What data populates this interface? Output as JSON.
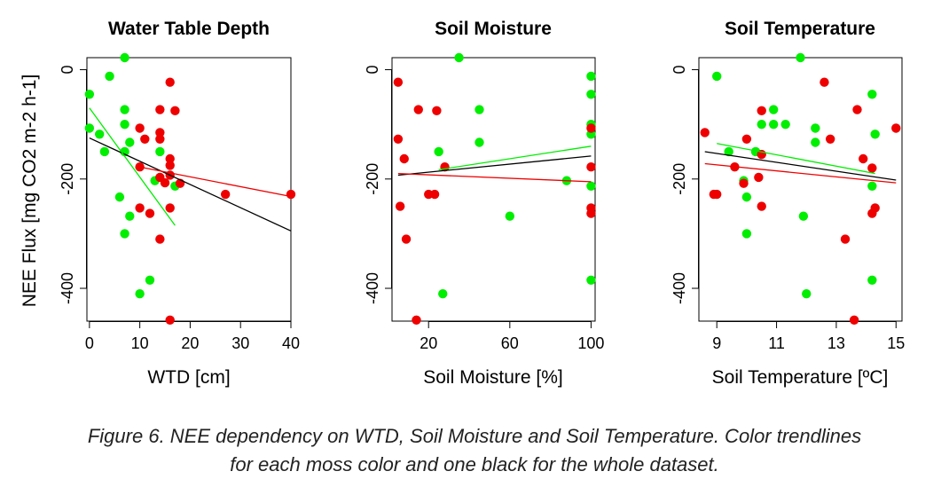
{
  "colors": {
    "green": "#00ee00",
    "red": "#ee0000",
    "black": "#000000"
  },
  "caption": {
    "line1": "Figure 6. NEE dependency on WTD, Soil Moisture and Soil Temperature. Color trendlines",
    "line2": "for each moss color and one black for the whole dataset."
  },
  "chart_data": [
    {
      "type": "scatter",
      "title": "Water Table Depth",
      "xlabel": "WTD [cm]",
      "ylabel": "NEE Flux [mg CO2 m-2 h-1]",
      "xticks": [
        "0",
        "10",
        "20",
        "30",
        "40"
      ],
      "yticks": [
        "0",
        "-200",
        "-400"
      ],
      "xlim": [
        -0.5,
        40
      ],
      "ylim": [
        -460,
        22
      ],
      "series": [
        {
          "color": "green",
          "points": [
            [
              0,
              -45
            ],
            [
              0,
              -107
            ],
            [
              2,
              -118
            ],
            [
              3,
              -150
            ],
            [
              4,
              -12
            ],
            [
              6,
              -233
            ],
            [
              7,
              22
            ],
            [
              7,
              -73
            ],
            [
              7,
              -100
            ],
            [
              7,
              -150
            ],
            [
              7,
              -300
            ],
            [
              8,
              -133
            ],
            [
              8,
              -268
            ],
            [
              10,
              -410
            ],
            [
              12,
              -385
            ],
            [
              13,
              -203
            ],
            [
              14,
              -150
            ],
            [
              17,
              -213
            ]
          ]
        },
        {
          "color": "red",
          "points": [
            [
              10,
              -107
            ],
            [
              10,
              -178
            ],
            [
              10,
              -253
            ],
            [
              11,
              -127
            ],
            [
              12,
              -263
            ],
            [
              14,
              -73
            ],
            [
              14,
              -115
            ],
            [
              14,
              -127
            ],
            [
              14,
              -197
            ],
            [
              14,
              -310
            ],
            [
              15,
              -207
            ],
            [
              16,
              -23
            ],
            [
              16,
              -163
            ],
            [
              16,
              -175
            ],
            [
              16,
              -193
            ],
            [
              16,
              -253
            ],
            [
              16,
              -458
            ],
            [
              17,
              -75
            ],
            [
              18,
              -208
            ],
            [
              27,
              -228
            ],
            [
              40,
              -228
            ]
          ]
        }
      ],
      "trendlines": [
        {
          "color": "black",
          "x": [
            0,
            40
          ],
          "y": [
            -125,
            -295
          ]
        },
        {
          "color": "green",
          "x": [
            0,
            17
          ],
          "y": [
            -70,
            -285
          ]
        },
        {
          "color": "red",
          "x": [
            10,
            40
          ],
          "y": [
            -178,
            -232
          ]
        }
      ]
    },
    {
      "type": "scatter",
      "title": "Soil Moisture",
      "xlabel": "Soil Moisture [%]",
      "xticks": [
        "20",
        "60",
        "100"
      ],
      "yticks": [
        "0",
        "-200",
        "-400"
      ],
      "xlim": [
        2,
        102
      ],
      "ylim": [
        -460,
        22
      ],
      "series": [
        {
          "color": "green",
          "points": [
            [
              25,
              -150
            ],
            [
              27,
              -410
            ],
            [
              35,
              22
            ],
            [
              45,
              -73
            ],
            [
              45,
              -133
            ],
            [
              60,
              -268
            ],
            [
              88,
              -203
            ],
            [
              100,
              -12
            ],
            [
              100,
              -45
            ],
            [
              100,
              -100
            ],
            [
              100,
              -118
            ],
            [
              100,
              -213
            ],
            [
              100,
              -385
            ]
          ]
        },
        {
          "color": "red",
          "points": [
            [
              5,
              -23
            ],
            [
              5,
              -127
            ],
            [
              6,
              -250
            ],
            [
              8,
              -163
            ],
            [
              9,
              -310
            ],
            [
              14,
              -458
            ],
            [
              15,
              -73
            ],
            [
              20,
              -228
            ],
            [
              23,
              -228
            ],
            [
              24,
              -75
            ],
            [
              28,
              -178
            ],
            [
              100,
              -107
            ],
            [
              100,
              -178
            ],
            [
              100,
              -253
            ],
            [
              100,
              -263
            ]
          ]
        }
      ],
      "trendlines": [
        {
          "color": "black",
          "x": [
            5,
            100
          ],
          "y": [
            -193,
            -158
          ]
        },
        {
          "color": "green",
          "x": [
            25,
            100
          ],
          "y": [
            -183,
            -140
          ]
        },
        {
          "color": "red",
          "x": [
            5,
            100
          ],
          "y": [
            -190,
            -205
          ]
        }
      ]
    },
    {
      "type": "scatter",
      "title": "Soil Temperature",
      "xlabel": "Soil Temperature [ºC]",
      "xticks": [
        "9",
        "11",
        "13",
        "15"
      ],
      "yticks": [
        "0",
        "-200",
        "-400"
      ],
      "xlim": [
        8.4,
        15.2
      ],
      "ylim": [
        -460,
        22
      ],
      "series": [
        {
          "color": "green",
          "points": [
            [
              9.0,
              -12
            ],
            [
              9.4,
              -150
            ],
            [
              9.9,
              -203
            ],
            [
              10.0,
              -233
            ],
            [
              10.0,
              -300
            ],
            [
              10.3,
              -150
            ],
            [
              10.5,
              -100
            ],
            [
              10.9,
              -73
            ],
            [
              10.9,
              -100
            ],
            [
              11.3,
              -100
            ],
            [
              11.8,
              22
            ],
            [
              11.9,
              -268
            ],
            [
              12.0,
              -410
            ],
            [
              12.3,
              -107
            ],
            [
              12.3,
              -133
            ],
            [
              14.2,
              -45
            ],
            [
              14.2,
              -213
            ],
            [
              14.2,
              -385
            ],
            [
              14.3,
              -118
            ]
          ]
        },
        {
          "color": "red",
          "points": [
            [
              8.6,
              -115
            ],
            [
              8.9,
              -228
            ],
            [
              9.0,
              -228
            ],
            [
              9.6,
              -178
            ],
            [
              9.9,
              -208
            ],
            [
              10.0,
              -127
            ],
            [
              10.4,
              -197
            ],
            [
              10.5,
              -75
            ],
            [
              10.5,
              -155
            ],
            [
              10.5,
              -250
            ],
            [
              12.6,
              -23
            ],
            [
              12.8,
              -127
            ],
            [
              13.3,
              -310
            ],
            [
              13.6,
              -458
            ],
            [
              13.7,
              -73
            ],
            [
              13.9,
              -163
            ],
            [
              14.2,
              -180
            ],
            [
              14.2,
              -263
            ],
            [
              14.3,
              -253
            ],
            [
              15.0,
              -107
            ]
          ]
        }
      ],
      "trendlines": [
        {
          "color": "black",
          "x": [
            8.6,
            15.0
          ],
          "y": [
            -150,
            -202
          ]
        },
        {
          "color": "green",
          "x": [
            9.0,
            14.3
          ],
          "y": [
            -135,
            -190
          ]
        },
        {
          "color": "red",
          "x": [
            8.6,
            15.0
          ],
          "y": [
            -172,
            -207
          ]
        }
      ]
    }
  ]
}
